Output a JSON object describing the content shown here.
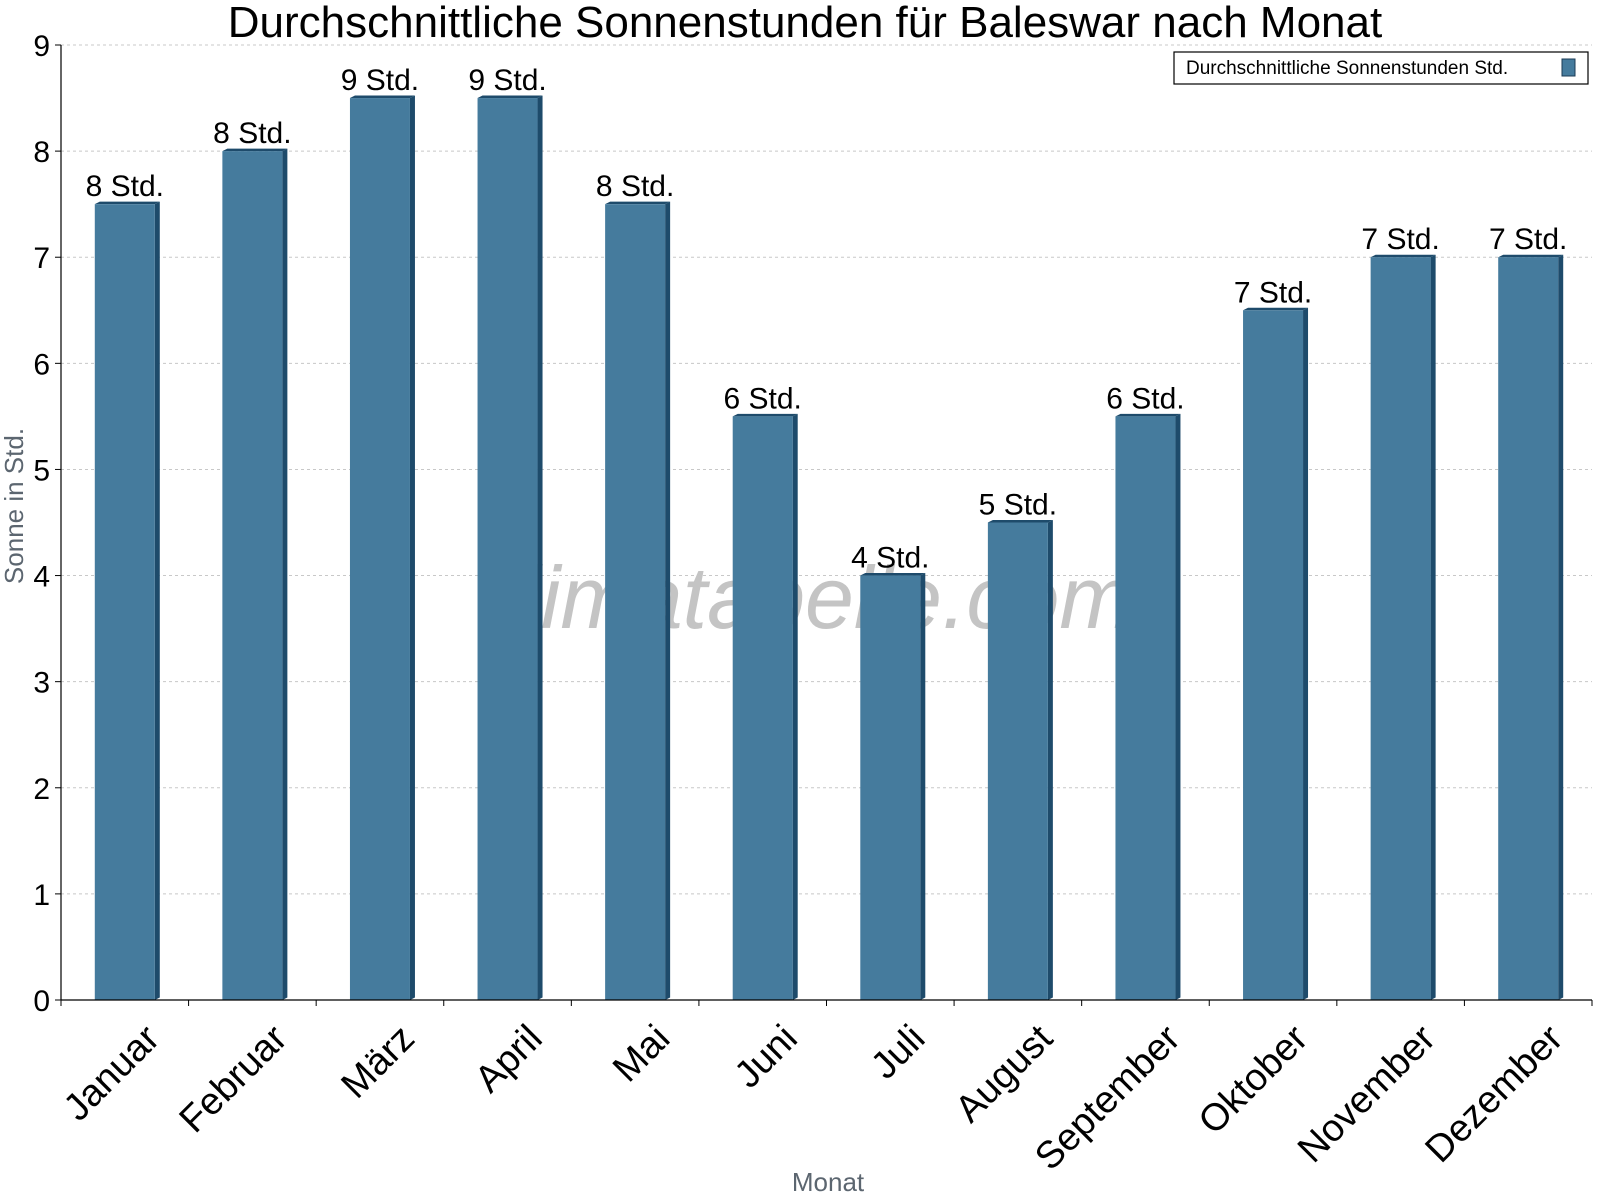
{
  "chart_data": {
    "type": "bar",
    "title": "Durchschnittliche Sonnenstunden für Baleswar nach Monat",
    "xlabel": "Monat",
    "ylabel": "Sonne in Std.",
    "ylim": [
      0,
      9
    ],
    "yticks": [
      "0",
      "1",
      "2",
      "3",
      "4",
      "5",
      "6",
      "7",
      "8",
      "9"
    ],
    "grid": true,
    "legend_position": "top-right",
    "categories": [
      "Januar",
      "Februar",
      "März",
      "April",
      "Mai",
      "Juni",
      "Juli",
      "August",
      "September",
      "Oktober",
      "November",
      "Dezember"
    ],
    "series": [
      {
        "name": "Durchschnittliche Sonnenstunden Std.",
        "color": "#457b9d",
        "values": [
          7.5,
          8.0,
          8.5,
          8.5,
          7.5,
          5.5,
          4.0,
          4.5,
          5.5,
          6.5,
          7.0,
          7.0
        ],
        "labels": [
          "8 Std.",
          "8 Std.",
          "9 Std.",
          "9 Std.",
          "8 Std.",
          "6 Std.",
          "4 Std.",
          "5 Std.",
          "6 Std.",
          "7 Std.",
          "7 Std.",
          "7 Std."
        ]
      }
    ],
    "watermark": "klimatabelle.com"
  }
}
